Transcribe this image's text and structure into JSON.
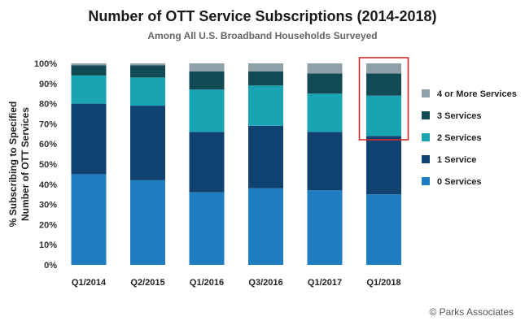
{
  "chart_data": {
    "type": "bar",
    "stacked": true,
    "title": "Number of OTT Service Subscriptions (2014-2018)",
    "subtitle": "Among All U.S. Broadband Households Surveyed",
    "ylabel_line1": "% Subscribing to Specified",
    "ylabel_line2": "Number of OTT Services",
    "ylim": [
      0,
      100
    ],
    "yticks": [
      "0%",
      "10%",
      "20%",
      "30%",
      "40%",
      "50%",
      "60%",
      "70%",
      "80%",
      "90%",
      "100%"
    ],
    "categories": [
      "Q1/2014",
      "Q2/2015",
      "Q1/2016",
      "Q3/2016",
      "Q1/2017",
      "Q1/2018"
    ],
    "series": [
      {
        "name": "0 Services",
        "color": "#1f7dc2",
        "values": [
          45,
          42,
          36,
          38,
          37,
          35
        ]
      },
      {
        "name": "1 Service",
        "color": "#0f4270",
        "values": [
          35,
          37,
          30,
          31,
          29,
          29
        ]
      },
      {
        "name": "2 Services",
        "color": "#19a4b4",
        "values": [
          14,
          14,
          21,
          20,
          19,
          20
        ]
      },
      {
        "name": "3 Services",
        "color": "#124a55",
        "values": [
          5,
          6,
          9,
          7,
          10,
          11
        ]
      },
      {
        "name": "4 or More Services",
        "color": "#8fa0a8",
        "values": [
          1,
          1,
          4,
          4,
          5,
          5
        ]
      }
    ],
    "legend_position": "right",
    "highlight_category": "Q1/2018",
    "highlight_color": "#d62b2b"
  },
  "credit": "© Parks Associates"
}
